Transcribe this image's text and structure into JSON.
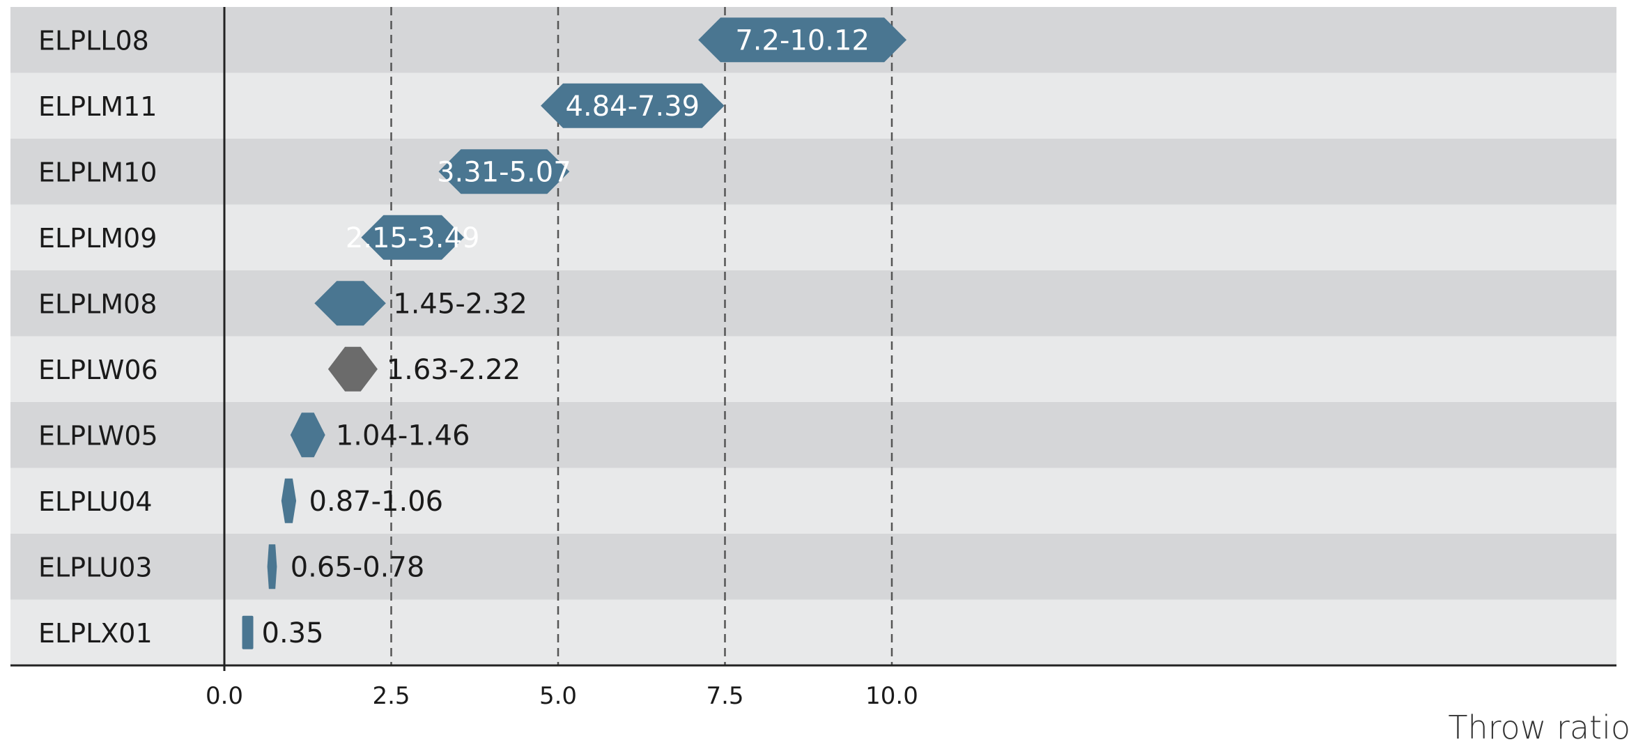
{
  "chart_data": {
    "type": "bar",
    "orientation": "horizontal-range",
    "xlabel": "Throw ratio",
    "xlim": [
      0,
      10.2
    ],
    "x_ticks": [
      0.0,
      2.5,
      5.0,
      7.5,
      10.0
    ],
    "x_tick_labels": [
      "0.0",
      "2.5",
      "5.0",
      "7.5",
      "10.0"
    ],
    "grid": "vertical dashed at 2.5, 5.0, 7.5, 10.0",
    "colors": {
      "primary": "#4a7691",
      "highlight": "#6b6b6b",
      "row_dark": "#d5d6d8",
      "row_light": "#e8e9ea"
    },
    "categories": [
      "ELPLL08",
      "ELPLM11",
      "ELPLM10",
      "ELPLM09",
      "ELPLM08",
      "ELPLW06",
      "ELPLW05",
      "ELPLU04",
      "ELPLU03",
      "ELPLX01"
    ],
    "ranges": [
      {
        "min": 7.2,
        "max": 10.12,
        "label": "7.2-10.12",
        "label_inside": true,
        "color": "primary"
      },
      {
        "min": 4.84,
        "max": 7.39,
        "label": "4.84-7.39",
        "label_inside": true,
        "color": "primary"
      },
      {
        "min": 3.31,
        "max": 5.07,
        "label": "3.31-5.07",
        "label_inside": true,
        "color": "primary"
      },
      {
        "min": 2.15,
        "max": 3.49,
        "label": "2.15-3.49",
        "label_inside": true,
        "color": "primary"
      },
      {
        "min": 1.45,
        "max": 2.32,
        "label": "1.45-2.32",
        "label_inside": false,
        "color": "primary"
      },
      {
        "min": 1.63,
        "max": 2.22,
        "label": "1.63-2.22",
        "label_inside": false,
        "color": "highlight"
      },
      {
        "min": 1.04,
        "max": 1.46,
        "label": "1.04-1.46",
        "label_inside": false,
        "color": "primary"
      },
      {
        "min": 0.87,
        "max": 1.06,
        "label": "0.87-1.06",
        "label_inside": false,
        "color": "primary"
      },
      {
        "min": 0.65,
        "max": 0.78,
        "label": "0.65-0.78",
        "label_inside": false,
        "color": "primary"
      },
      {
        "min": 0.35,
        "max": 0.35,
        "label": "0.35",
        "label_inside": false,
        "color": "primary"
      }
    ]
  }
}
